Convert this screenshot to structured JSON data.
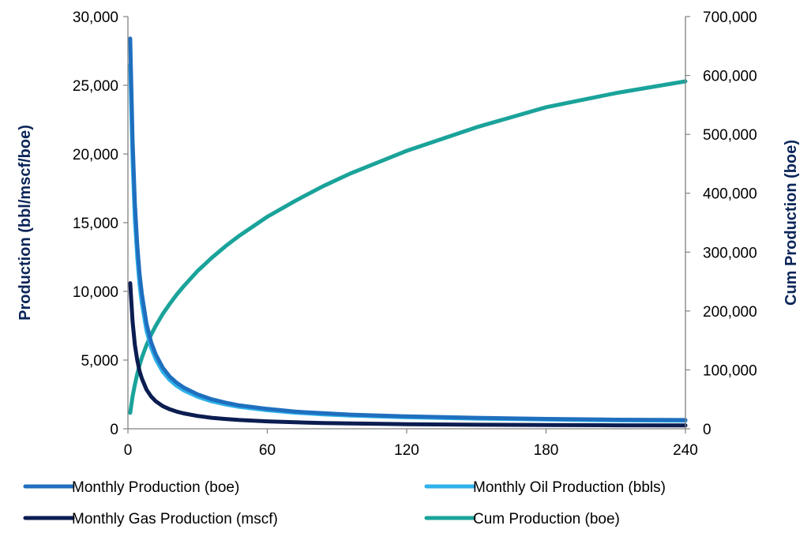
{
  "chart_data": {
    "type": "line",
    "title": "",
    "xlabel": "",
    "ylabel": "Production (bbl/mscf/boe)",
    "y2label": "Cum Production (boe)",
    "xlim": [
      0,
      240
    ],
    "ylim": [
      0,
      30000
    ],
    "y2lim": [
      0,
      700000
    ],
    "x_ticks": [
      "0",
      "60",
      "120",
      "180",
      "240"
    ],
    "y_ticks": [
      "0",
      "5,000",
      "10,000",
      "15,000",
      "20,000",
      "25,000",
      "30,000"
    ],
    "y2_ticks": [
      "0",
      "100,000",
      "200,000",
      "300,000",
      "400,000",
      "500,000",
      "600,000",
      "700,000"
    ],
    "grid": false,
    "legend_position": "bottom",
    "x": [
      1,
      2,
      3,
      4,
      5,
      6,
      8,
      10,
      12,
      15,
      18,
      21,
      24,
      30,
      36,
      42,
      48,
      60,
      72,
      84,
      96,
      120,
      150,
      180,
      210,
      240
    ],
    "series": [
      {
        "name": "Monthly Production (boe)",
        "axis": "left",
        "color": "#1f6fbf",
        "values": [
          28400,
          21000,
          16400,
          13400,
          11300,
          9800,
          7650,
          6300,
          5400,
          4450,
          3800,
          3350,
          3000,
          2500,
          2150,
          1900,
          1700,
          1450,
          1250,
          1130,
          1030,
          900,
          800,
          720,
          660,
          640
        ]
      },
      {
        "name": "Monthly Oil Production (bbls)",
        "axis": "left",
        "color": "#2fb1ea",
        "values": [
          26500,
          19500,
          15200,
          12500,
          10500,
          9100,
          7150,
          5900,
          5050,
          4150,
          3550,
          3120,
          2800,
          2330,
          2000,
          1770,
          1590,
          1350,
          1170,
          1050,
          960,
          840,
          740,
          670,
          610,
          590
        ]
      },
      {
        "name": "Monthly Gas Production (mscf)",
        "axis": "left",
        "color": "#0b1d51",
        "values": [
          10600,
          7800,
          6100,
          5000,
          4200,
          3650,
          2850,
          2350,
          2000,
          1650,
          1420,
          1250,
          1120,
          930,
          800,
          710,
          640,
          540,
          470,
          420,
          385,
          335,
          295,
          270,
          250,
          240
        ]
      },
      {
        "name": "Cum Production (boe)",
        "axis": "right",
        "color": "#1aa39a",
        "values": [
          27000,
          55000,
          75000,
          93000,
          108000,
          121000,
          142000,
          160000,
          175000,
          195000,
          212000,
          228000,
          242000,
          268000,
          290000,
          310000,
          328000,
          360000,
          387000,
          412000,
          434000,
          472000,
          512000,
          546000,
          570000,
          590000
        ]
      }
    ]
  }
}
